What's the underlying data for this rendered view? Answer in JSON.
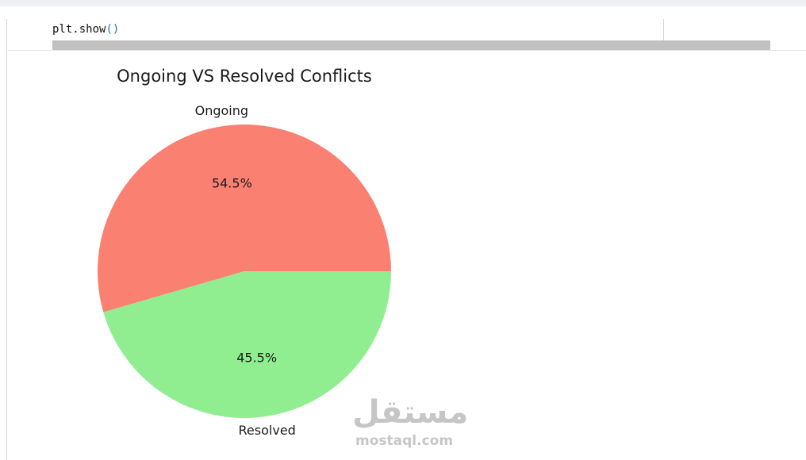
{
  "code": {
    "call_text": "plt.show",
    "parens": "()"
  },
  "chart_data": {
    "type": "pie",
    "title": "Ongoing VS Resolved Conflicts",
    "labels": [
      "Ongoing",
      "Resolved"
    ],
    "values": [
      54.5,
      45.5
    ],
    "autopct_labels": [
      "54.5%",
      "45.5%"
    ],
    "colors": [
      "#fa8072",
      "#90ee90"
    ],
    "legend": "none"
  },
  "watermark": {
    "arabic": "مستقل",
    "latin": "mostaql.com"
  }
}
